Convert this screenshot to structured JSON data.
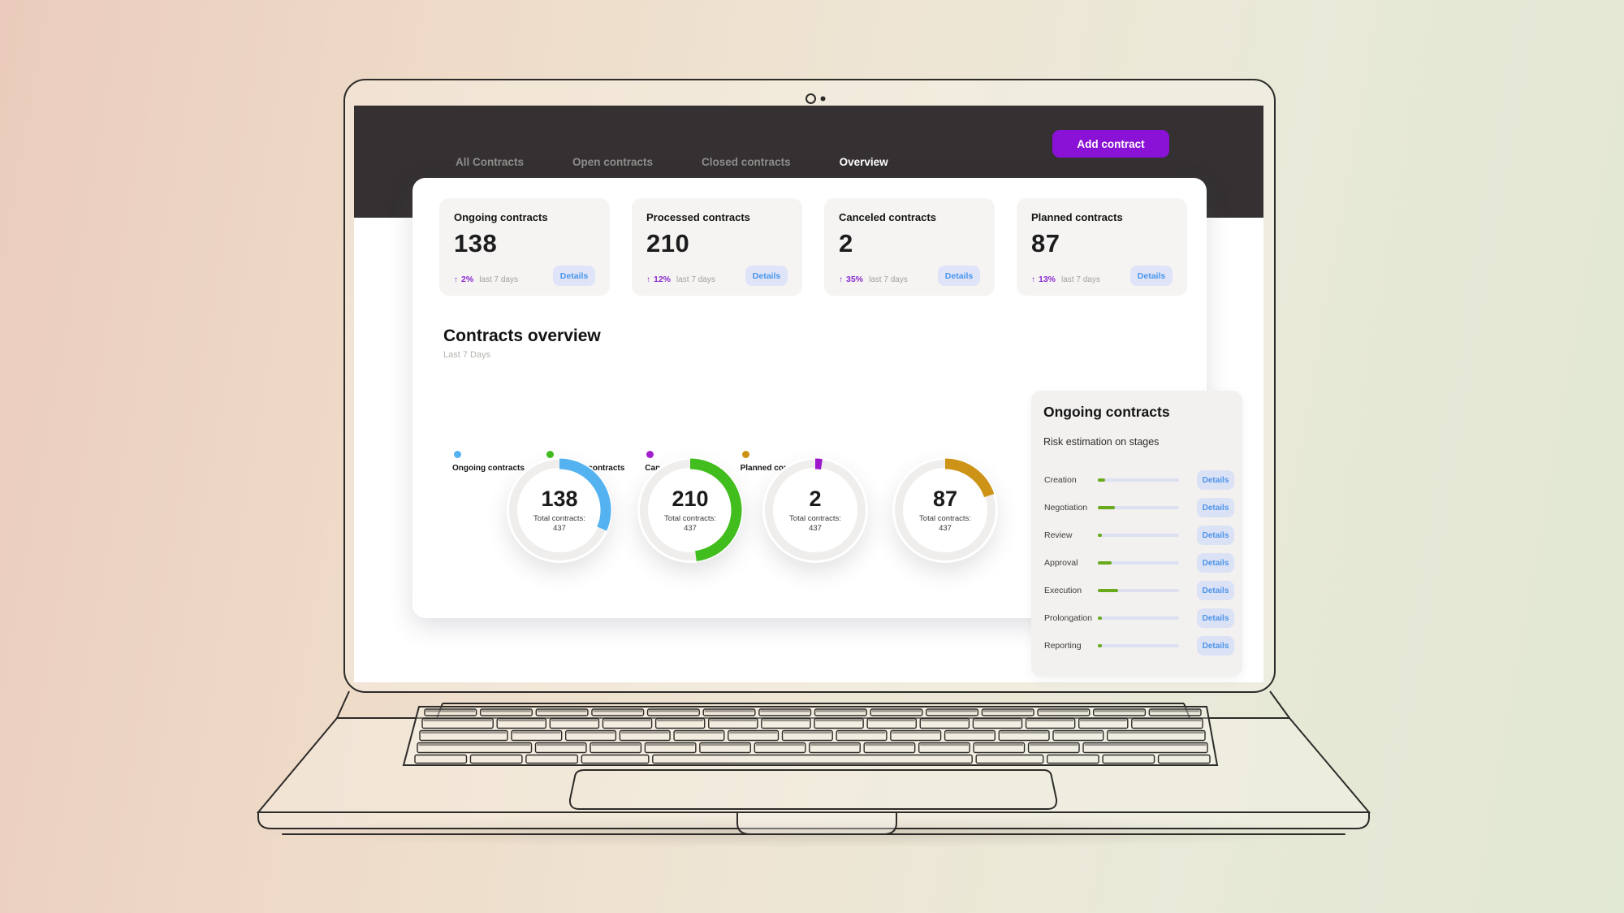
{
  "nav": {
    "tabs": [
      {
        "label": "All Contracts",
        "active": false
      },
      {
        "label": "Open contracts",
        "active": false
      },
      {
        "label": "Closed contracts",
        "active": false
      },
      {
        "label": "Overview",
        "active": true
      }
    ],
    "add_contract_label": "Add contract"
  },
  "icons": {
    "trend_up": "↑"
  },
  "stat_cards": [
    {
      "title": "Ongoing contracts",
      "value": "138",
      "change": "2%",
      "period": "last 7 days",
      "details_label": "Details"
    },
    {
      "title": "Processed contracts",
      "value": "210",
      "change": "12%",
      "period": "last 7 days",
      "details_label": "Details"
    },
    {
      "title": "Canceled contracts",
      "value": "2",
      "change": "35%",
      "period": "last 7 days",
      "details_label": "Details"
    },
    {
      "title": "Planned contracts",
      "value": "87",
      "change": "13%",
      "period": "last 7 days",
      "details_label": "Details"
    }
  ],
  "overview_section": {
    "title": "Contracts overview",
    "subtitle": "Last 7 Days",
    "legend": [
      {
        "label": "Ongoing contracts",
        "color": "#55b2f1"
      },
      {
        "label": "Processed contracts",
        "color": "#41bd1d"
      },
      {
        "label": "Canceled contracts",
        "color": "#a21fce"
      },
      {
        "label": "Planned contracts",
        "color": "#cc9214"
      }
    ]
  },
  "chart_data": {
    "type": "donut",
    "total": 437,
    "total_label": "Total contracts:",
    "charts": [
      {
        "name": "Ongoing contracts",
        "value": 138,
        "color": "#55b2f1"
      },
      {
        "name": "Processed contracts",
        "value": 210,
        "color": "#41bd1d"
      },
      {
        "name": "Canceled contracts",
        "value": 2,
        "color": "#9e17cd"
      },
      {
        "name": "Planned contracts",
        "value": 87,
        "color": "#cd9316"
      }
    ]
  },
  "risk_panel": {
    "title": "Ongoing contracts",
    "subtitle": "Risk estimation on stages",
    "details_label": "Details",
    "bar_color": "#69aa1d",
    "stages": [
      {
        "label": "Creation",
        "progress": 9
      },
      {
        "label": "Negotiation",
        "progress": 21
      },
      {
        "label": "Review",
        "progress": 4
      },
      {
        "label": "Approval",
        "progress": 17
      },
      {
        "label": "Execution",
        "progress": 25
      },
      {
        "label": "Prolongation",
        "progress": 5
      },
      {
        "label": "Reporting",
        "progress": 4
      }
    ]
  },
  "colors": {
    "header_bg": "#353132",
    "accent_purple": "#8912d6",
    "change_purple": "#8a2bd0",
    "details_bg": "#dfe4f9",
    "details_text": "#4a96ea",
    "card_bg": "#f5f4f2",
    "risk_panel_bg": "#f2f1ef",
    "track": "#dde0f1"
  }
}
